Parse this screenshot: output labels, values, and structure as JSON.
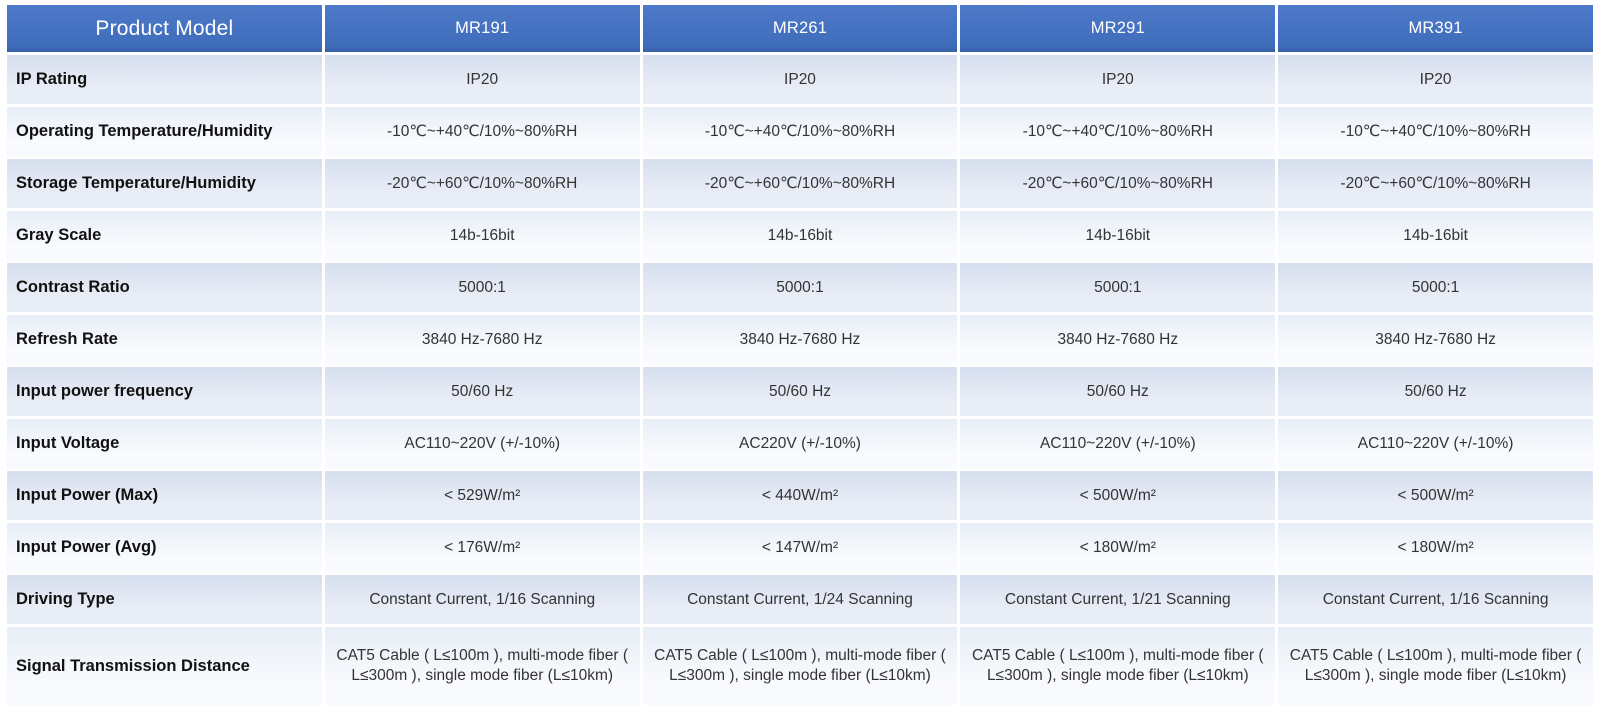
{
  "table": {
    "header": {
      "label": "Product Model",
      "models": [
        "MR191",
        "MR261",
        "MR291",
        "MR391"
      ]
    },
    "rows": [
      {
        "label": "IP Rating",
        "values": [
          "IP20",
          "IP20",
          "IP20",
          "IP20"
        ]
      },
      {
        "label": "Operating Temperature/Humidity",
        "values": [
          "-10℃~+40℃/10%~80%RH",
          "-10℃~+40℃/10%~80%RH",
          "-10℃~+40℃/10%~80%RH",
          "-10℃~+40℃/10%~80%RH"
        ]
      },
      {
        "label": "Storage Temperature/Humidity",
        "values": [
          "-20℃~+60℃/10%~80%RH",
          "-20℃~+60℃/10%~80%RH",
          "-20℃~+60℃/10%~80%RH",
          "-20℃~+60℃/10%~80%RH"
        ]
      },
      {
        "label": "Gray Scale",
        "values": [
          "14b-16bit",
          "14b-16bit",
          "14b-16bit",
          "14b-16bit"
        ]
      },
      {
        "label": "Contrast Ratio",
        "values": [
          "5000:1",
          "5000:1",
          "5000:1",
          "5000:1"
        ]
      },
      {
        "label": "Refresh Rate",
        "values": [
          "3840 Hz-7680 Hz",
          "3840 Hz-7680 Hz",
          "3840 Hz-7680 Hz",
          "3840 Hz-7680 Hz"
        ]
      },
      {
        "label": "Input power frequency",
        "values": [
          "50/60 Hz",
          "50/60 Hz",
          "50/60 Hz",
          "50/60 Hz"
        ]
      },
      {
        "label": "Input Voltage",
        "values": [
          "AC110~220V (+/-10%)",
          "AC220V (+/-10%)",
          "AC110~220V (+/-10%)",
          "AC110~220V (+/-10%)"
        ]
      },
      {
        "label": "Input Power (Max)",
        "values": [
          "< 529W/m²",
          "< 440W/m²",
          "< 500W/m²",
          "< 500W/m²"
        ]
      },
      {
        "label": "Input Power (Avg)",
        "values": [
          "< 176W/m²",
          "< 147W/m²",
          "< 180W/m²",
          "< 180W/m²"
        ]
      },
      {
        "label": "Driving Type",
        "values": [
          "Constant Current, 1/16 Scanning",
          "Constant Current, 1/24 Scanning",
          "Constant Current, 1/21 Scanning",
          "Constant Current, 1/16 Scanning"
        ]
      },
      {
        "label": "Signal Transmission Distance",
        "values": [
          "CAT5 Cable ( L≤100m ), multi-mode fiber ( L≤300m ), single mode fiber (L≤10km)",
          "CAT5 Cable ( L≤100m ), multi-mode fiber ( L≤300m ), single mode fiber (L≤10km)",
          "CAT5 Cable ( L≤100m ), multi-mode fiber ( L≤300m ), single mode fiber (L≤10km)",
          "CAT5 Cable ( L≤100m ), multi-mode fiber ( L≤300m ), single mode fiber (L≤10km)"
        ]
      }
    ],
    "tall_row_label": "Signal Transmission Distance"
  },
  "colors": {
    "page_bg": "#ffffff",
    "header_top": "#4e7ac9",
    "header_bottom": "#3f6dbb",
    "header_edge": "#3a63ac",
    "header_text": "#ffffff",
    "row_dark_top": "#d6dfef",
    "row_dark_bottom": "#e9edf6",
    "row_light_top": "#e8eef7",
    "row_light_bottom": "#f8fafd",
    "label_text": "#111111",
    "value_text": "#333333"
  }
}
